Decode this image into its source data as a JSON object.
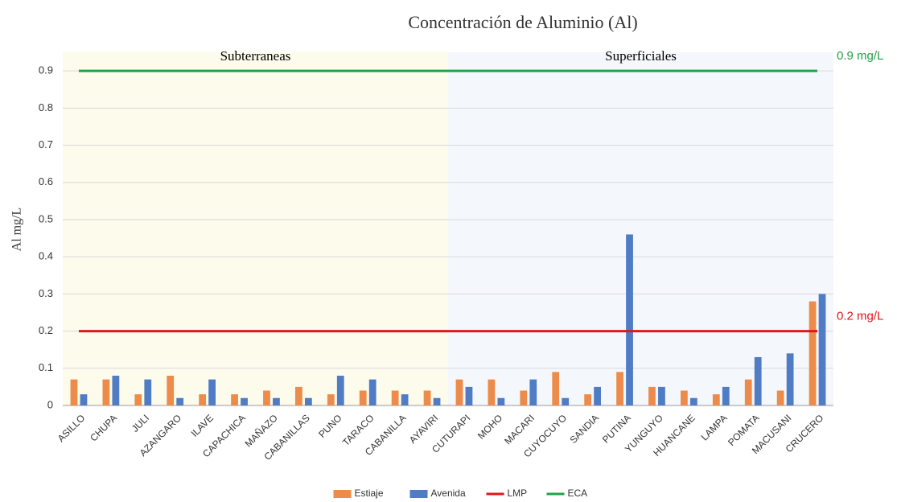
{
  "chart_data": {
    "type": "bar",
    "title": "Concentración de Aluminio (Al)",
    "y_label": "Al mg/L",
    "categories": [
      "ASILLO",
      "CHUPA",
      "JULI",
      "AZANGARO",
      "ILAVE",
      "CAPACHICA",
      "MAÑAZO",
      "CABANILLAS",
      "PUNO",
      "TARACO",
      "CABANILLA",
      "AYAVIRI",
      "CUTURAPI",
      "MOHO",
      "MACARI",
      "CUYOCUYO",
      "SANDIA",
      "PUTINA",
      "YUNGUYO",
      "HUANCANE",
      "LAMPA",
      "POMATA",
      "MACUSANI",
      "CRUCERO"
    ],
    "series": [
      {
        "name": "Estiaje",
        "color": "#ed8b4a",
        "values": [
          0.07,
          0.07,
          0.03,
          0.08,
          0.03,
          0.03,
          0.04,
          0.05,
          0.03,
          0.04,
          0.04,
          0.04,
          0.07,
          0.07,
          0.04,
          0.09,
          0.03,
          0.09,
          0.05,
          0.04,
          0.03,
          0.07,
          0.04,
          0.28
        ]
      },
      {
        "name": "Avenida",
        "color": "#4f7cc4",
        "values": [
          0.03,
          0.08,
          0.07,
          0.02,
          0.07,
          0.02,
          0.02,
          0.02,
          0.08,
          0.07,
          0.03,
          0.02,
          0.05,
          0.02,
          0.07,
          0.02,
          0.05,
          0.46,
          0.05,
          0.02,
          0.05,
          0.13,
          0.14,
          0.3
        ]
      }
    ],
    "reference_lines": [
      {
        "name": "LMP",
        "value": 0.2,
        "color": "#e0161c",
        "label": "0.2 mg/L"
      },
      {
        "name": "ECA",
        "value": 0.9,
        "color": "#1fa347",
        "label": "0.9 mg/L"
      }
    ],
    "regions": [
      {
        "label": "Subterraneas",
        "from": "ASILLO",
        "to": "AYAVIRI",
        "color": "#fdfbec"
      },
      {
        "label": "Superficiales",
        "from": "CUTURAPI",
        "to": "CRUCERO",
        "color": "#f4f8fc"
      }
    ],
    "ylim": [
      0,
      0.95
    ],
    "yticks": [
      0,
      0.1,
      0.2,
      0.3,
      0.4,
      0.5,
      0.6,
      0.7,
      0.8,
      0.9
    ],
    "grid": true,
    "legend": "bottom"
  }
}
